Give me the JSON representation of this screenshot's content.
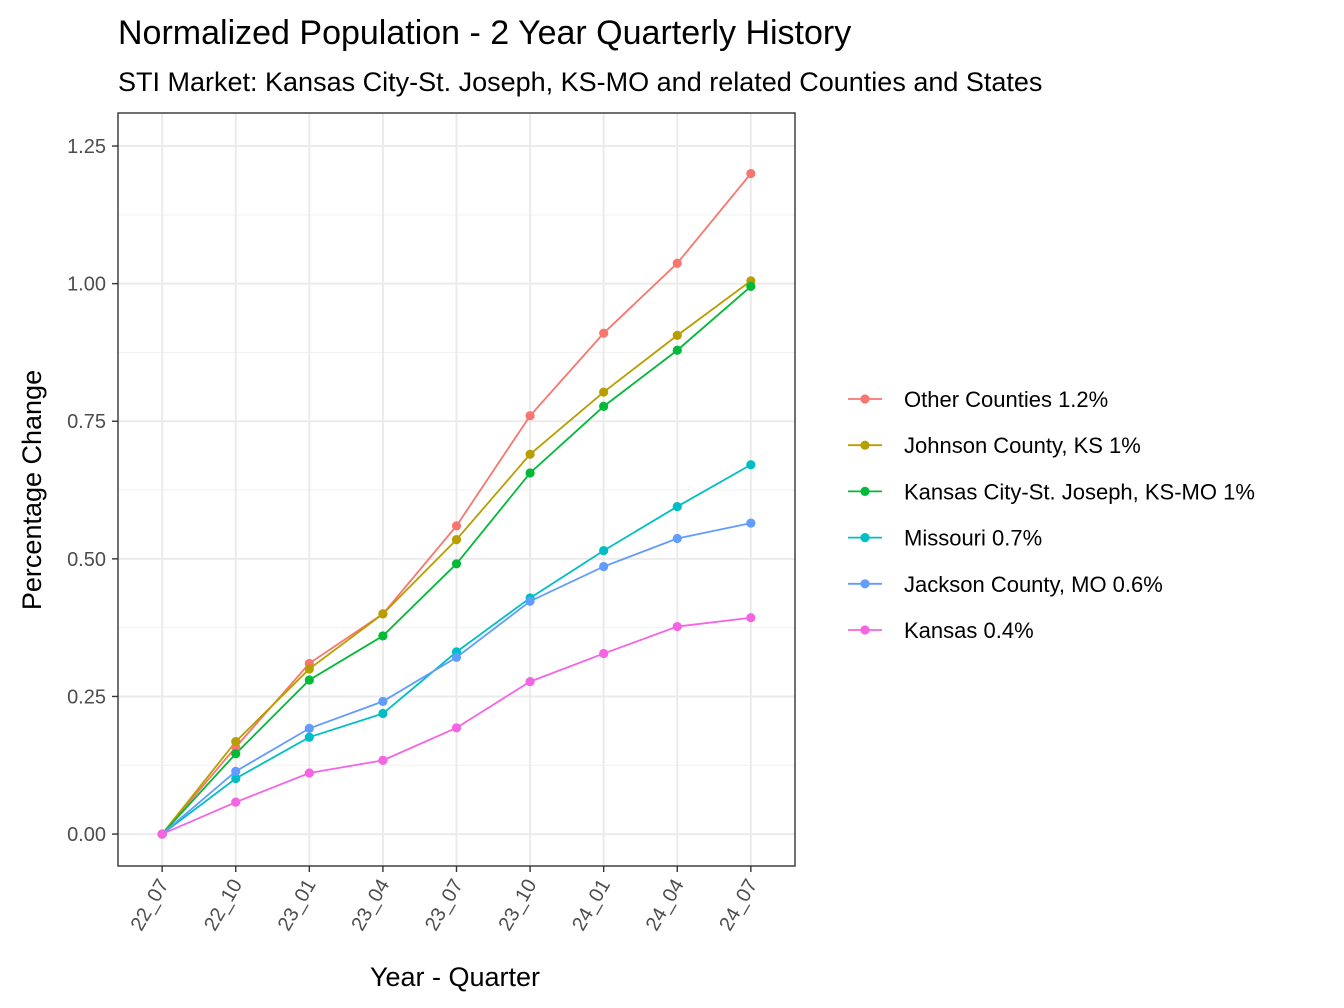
{
  "chart_data": {
    "type": "line",
    "title": "Normalized Population - 2 Year Quarterly History",
    "subtitle": "STI Market: Kansas City-St. Joseph, KS-MO and related Counties and States",
    "xlabel": "Year - Quarter",
    "ylabel": "Percentage Change",
    "categories": [
      "22_07",
      "22_10",
      "23_01",
      "23_04",
      "23_07",
      "23_10",
      "24_01",
      "24_04",
      "24_07"
    ],
    "yticks": [
      0.0,
      0.25,
      0.5,
      0.75,
      1.0,
      1.25
    ],
    "ytick_labels": [
      "0.00",
      "0.25",
      "0.50",
      "0.75",
      "1.00",
      "1.25"
    ],
    "ylim": [
      -0.058,
      1.31
    ],
    "grid": true,
    "legend_position": "right",
    "series": [
      {
        "name": "Other Counties 1.2%",
        "color": "#F8766D",
        "values": [
          0.0,
          0.158,
          0.31,
          0.4,
          0.56,
          0.76,
          0.91,
          1.037,
          1.2
        ]
      },
      {
        "name": "Johnson County, KS 1%",
        "color": "#B79F00",
        "values": [
          0.0,
          0.168,
          0.3,
          0.4,
          0.535,
          0.69,
          0.803,
          0.906,
          1.005
        ]
      },
      {
        "name": "Kansas City-St. Joseph, KS-MO 1%",
        "color": "#00BA38",
        "values": [
          0.0,
          0.146,
          0.28,
          0.36,
          0.491,
          0.656,
          0.777,
          0.879,
          0.995
        ]
      },
      {
        "name": "Missouri 0.7%",
        "color": "#00BFC4",
        "values": [
          0.0,
          0.101,
          0.176,
          0.219,
          0.331,
          0.429,
          0.515,
          0.595,
          0.671
        ]
      },
      {
        "name": "Jackson County, MO 0.6%",
        "color": "#619CFF",
        "values": [
          0.0,
          0.114,
          0.192,
          0.241,
          0.321,
          0.423,
          0.486,
          0.537,
          0.565
        ]
      },
      {
        "name": "Kansas 0.4%",
        "color": "#F564E3",
        "values": [
          0.0,
          0.058,
          0.111,
          0.134,
          0.193,
          0.277,
          0.328,
          0.377,
          0.393
        ]
      }
    ]
  }
}
